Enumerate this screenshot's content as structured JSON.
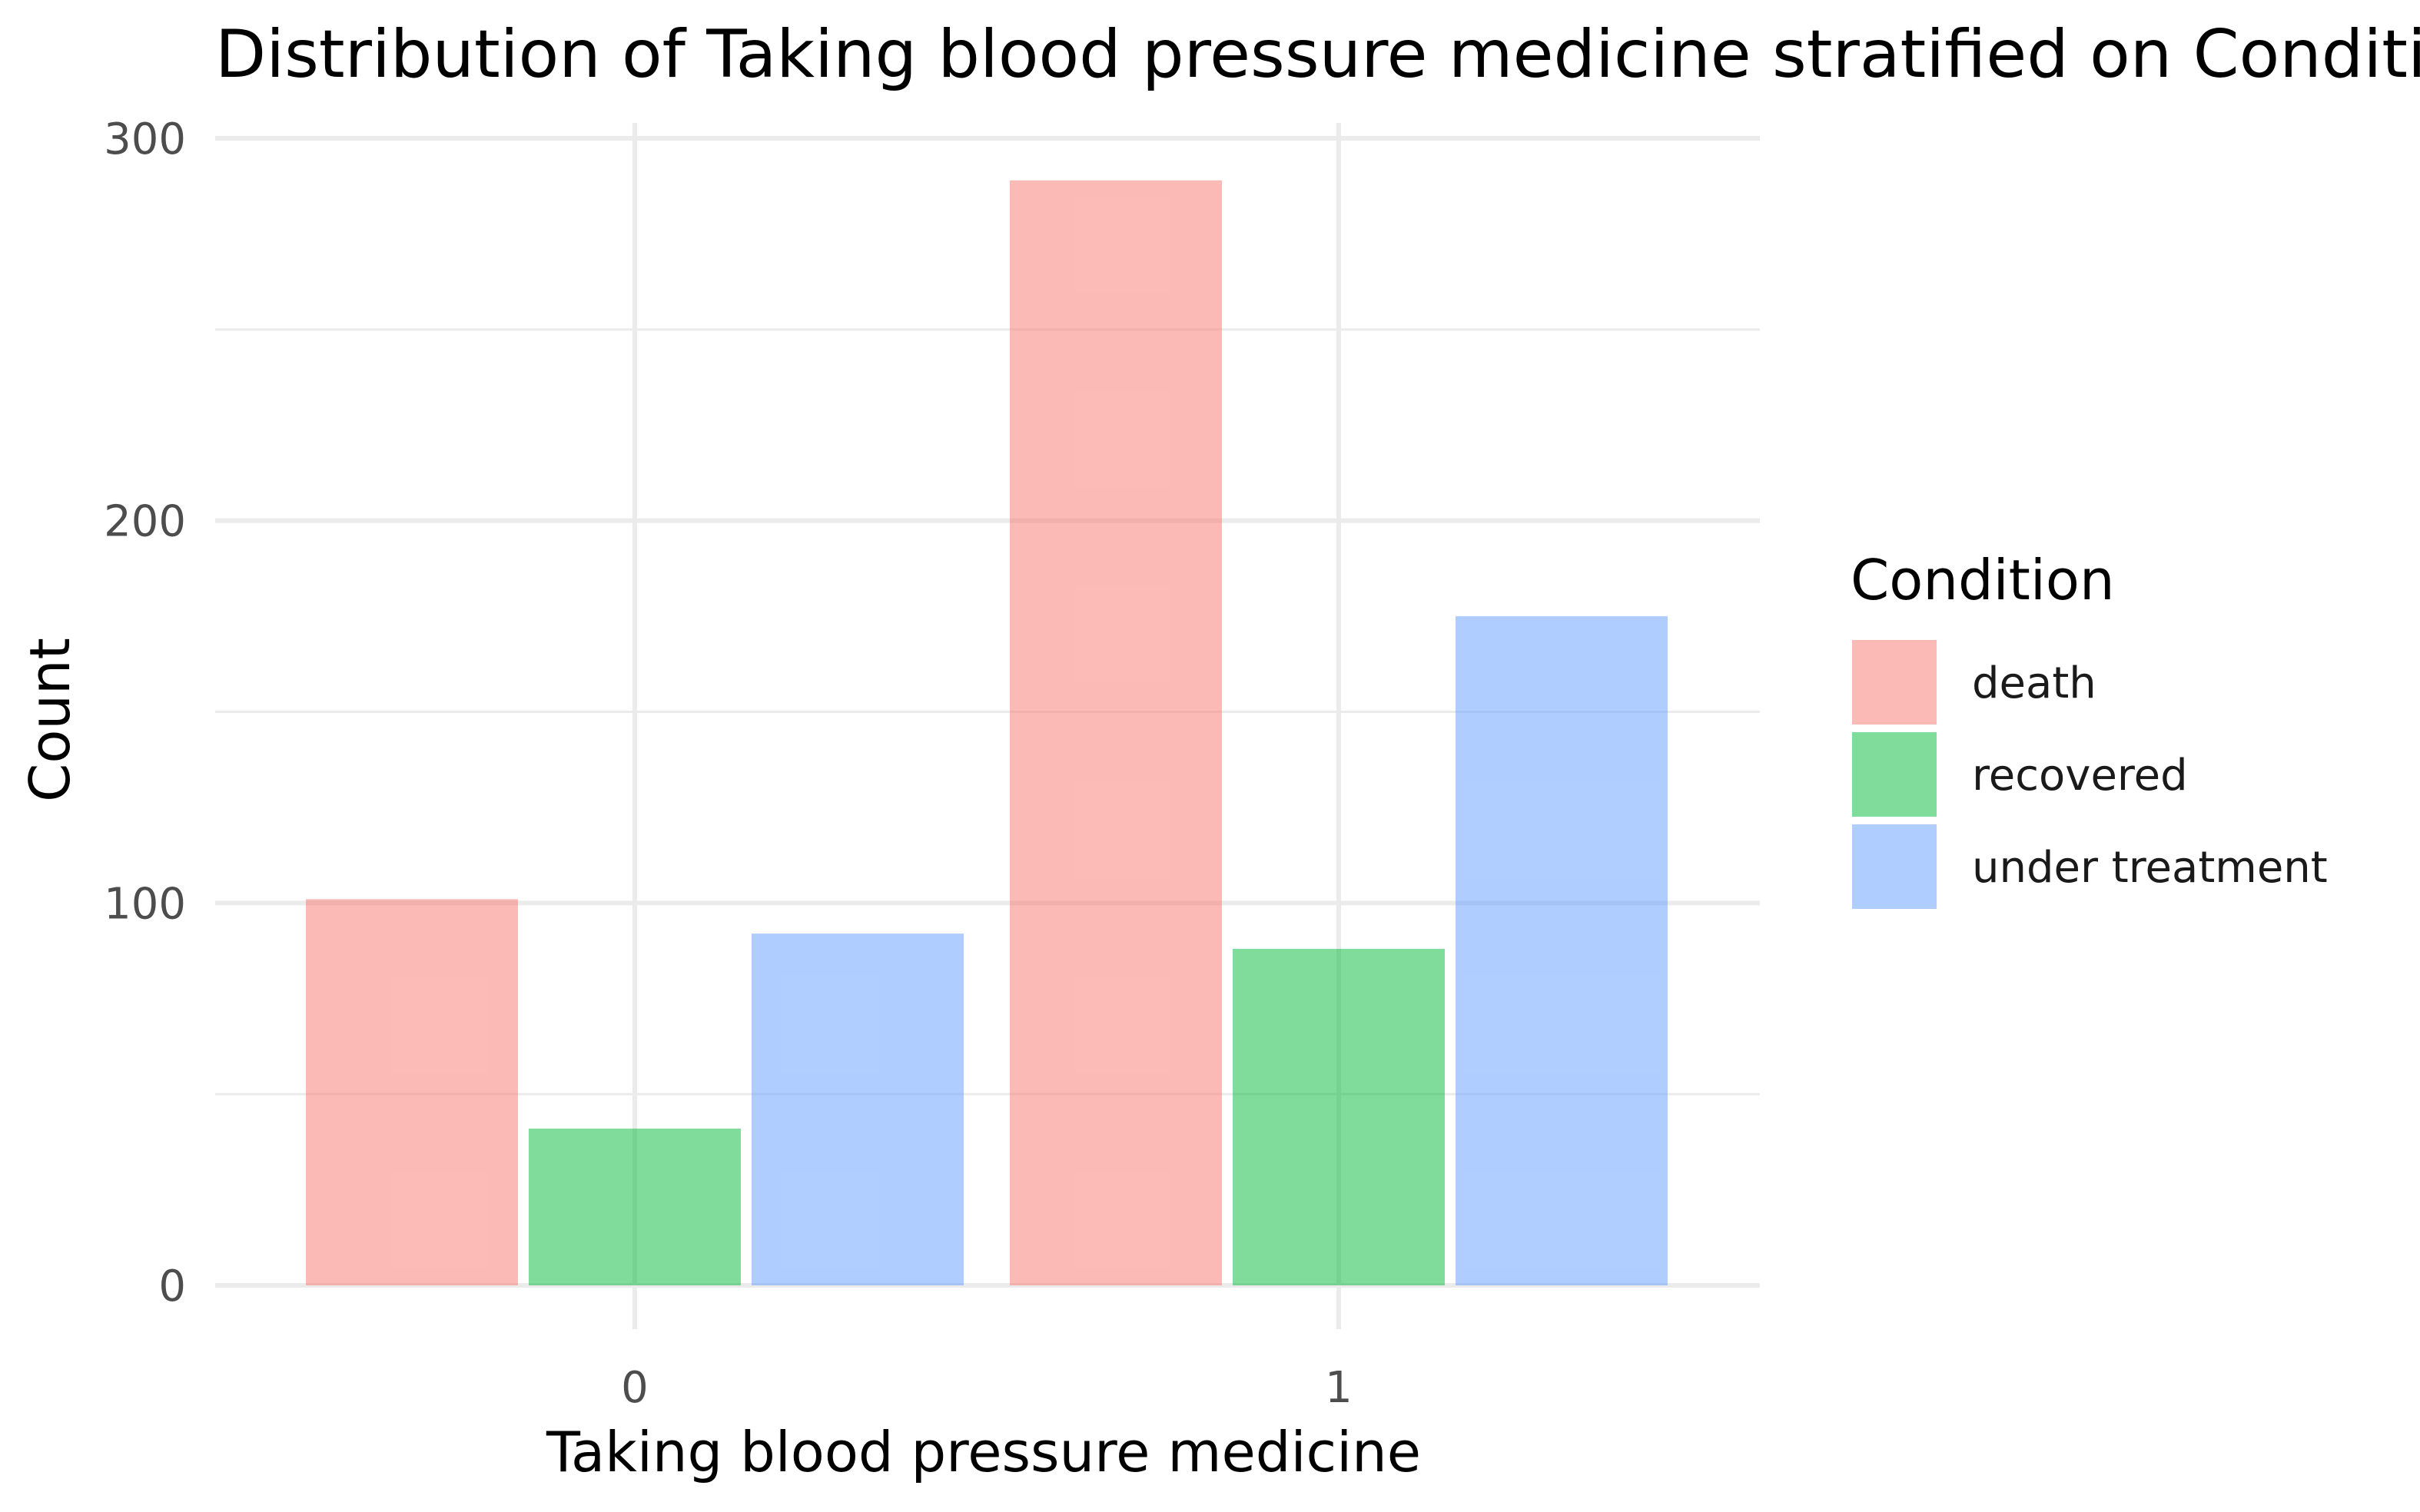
{
  "chart_data": {
    "type": "bar",
    "title": "Distribution of Taking blood pressure medicine stratified on Condition",
    "xlabel": "Taking blood pressure medicine",
    "ylabel": "Count",
    "categories": [
      "0",
      "1"
    ],
    "series": [
      {
        "name": "death",
        "values": [
          101,
          289
        ],
        "color": "#F8766D"
      },
      {
        "name": "recovered",
        "values": [
          41,
          88
        ],
        "color": "#00BA38"
      },
      {
        "name": "under treatment",
        "values": [
          92,
          175
        ],
        "color": "#619CFF"
      }
    ],
    "ylim": [
      0,
      300
    ],
    "yticks": [
      0,
      100,
      200,
      300
    ],
    "grid": true,
    "bar_opacity": 0.5,
    "legend": {
      "title": "Condition",
      "position": "right"
    }
  }
}
